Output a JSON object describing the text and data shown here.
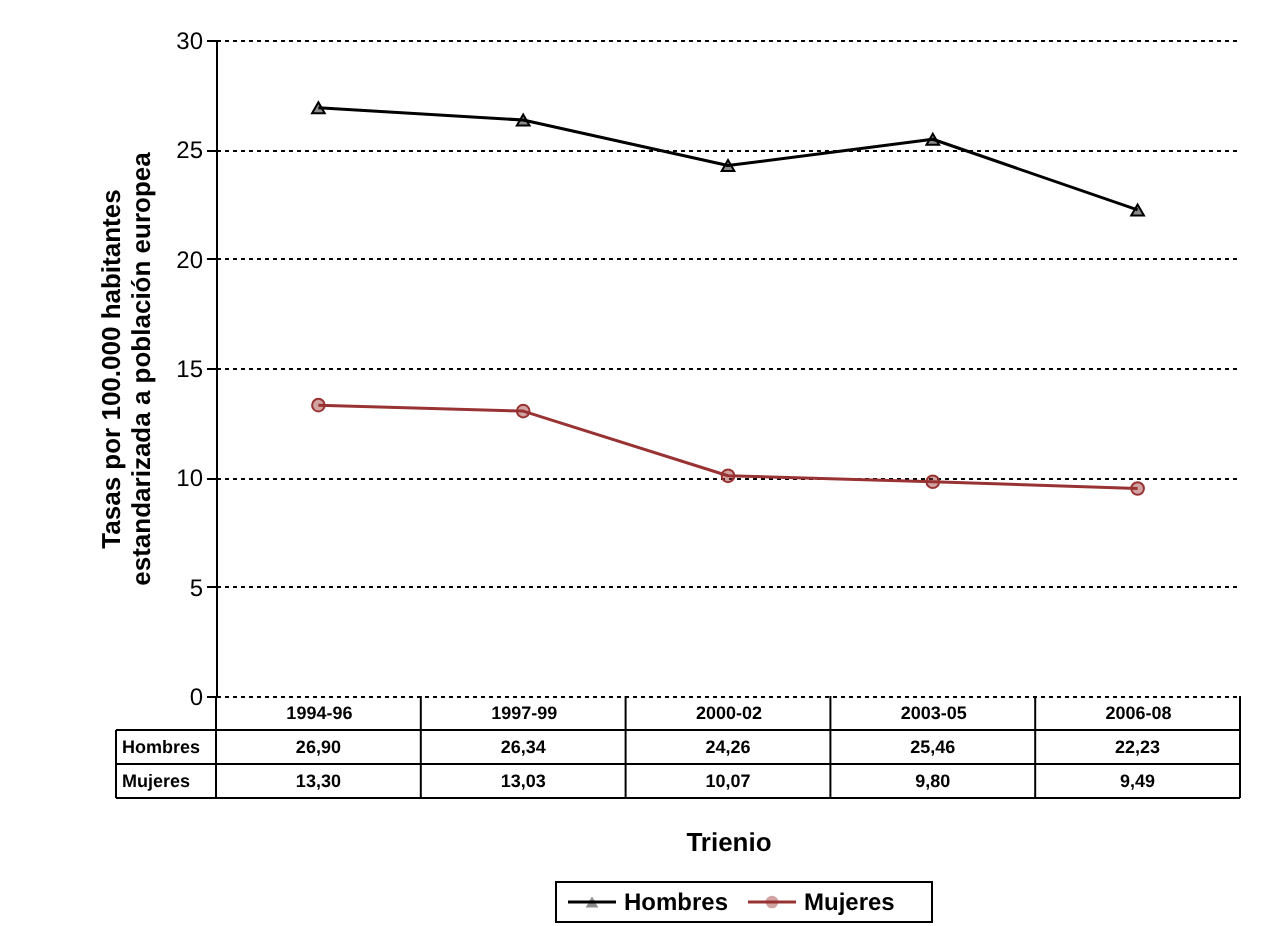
{
  "chart_data": {
    "type": "line",
    "xlabel": "Trienio",
    "ylabel": "Tasas por 100.000 habitantes\nestandarizada a población europea",
    "categories": [
      "1994-96",
      "1997-99",
      "2000-02",
      "2003-05",
      "2006-08"
    ],
    "series": [
      {
        "name": "Hombres",
        "color": "#000000",
        "marker": "triangle",
        "values": [
          26.9,
          26.34,
          24.26,
          25.46,
          22.23
        ],
        "value_labels": [
          "26,90",
          "26,34",
          "24,26",
          "25,46",
          "22,23"
        ]
      },
      {
        "name": "Mujeres",
        "color": "#993333",
        "marker": "circle",
        "values": [
          13.3,
          13.03,
          10.07,
          9.8,
          9.49
        ],
        "value_labels": [
          "13,30",
          "13,03",
          "10,07",
          "9,80",
          "9,49"
        ]
      }
    ],
    "ylim": [
      0,
      30
    ],
    "yticks": [
      0,
      5,
      10,
      15,
      20,
      25,
      30
    ],
    "grid": "y",
    "legend": "bottom",
    "line_style": "solid"
  }
}
